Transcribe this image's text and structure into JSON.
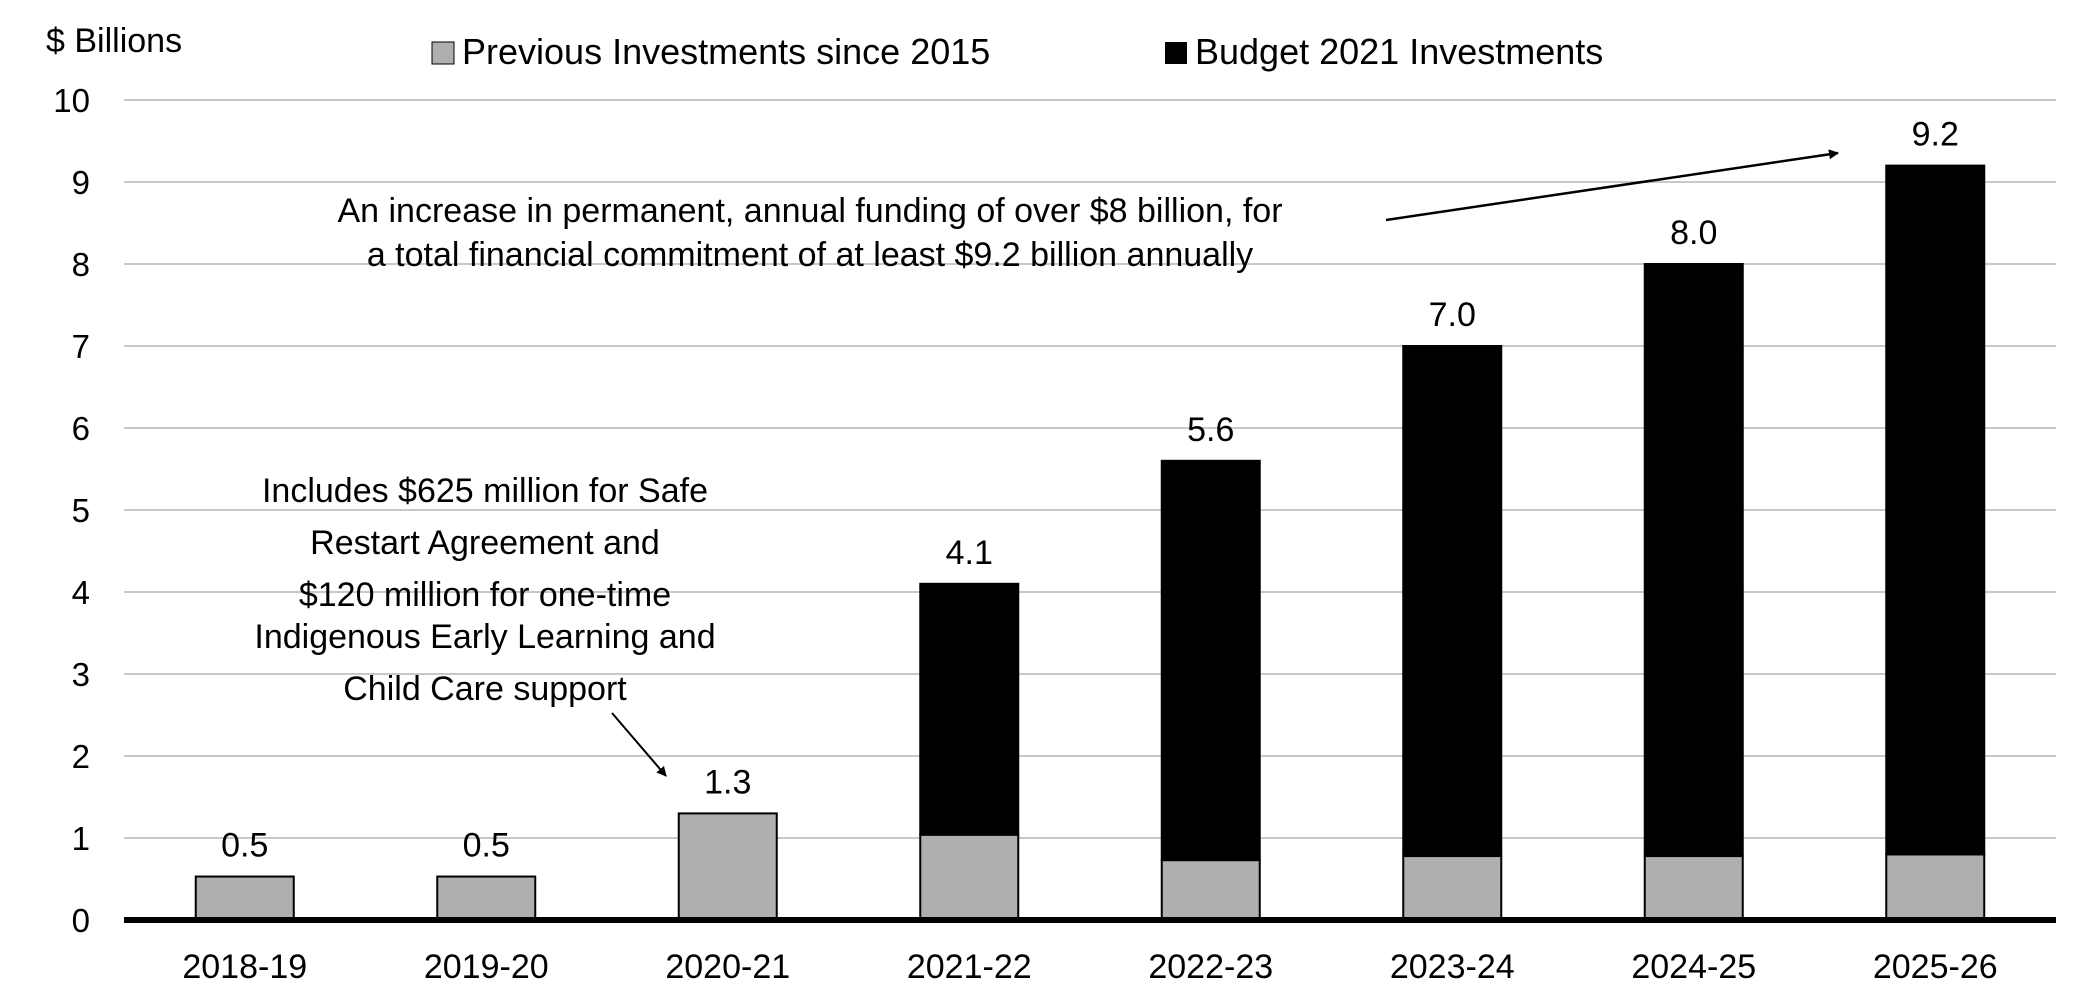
{
  "chart_data": {
    "type": "bar",
    "stacked": true,
    "ylabel": "$ Billions",
    "ylim": [
      0,
      10
    ],
    "yticks": [
      0,
      1,
      2,
      3,
      4,
      5,
      6,
      7,
      8,
      9,
      10
    ],
    "grid": true,
    "legend_position": "top",
    "categories": [
      "2018-19",
      "2019-20",
      "2020-21",
      "2021-22",
      "2022-23",
      "2023-24",
      "2024-25",
      "2025-26"
    ],
    "series": [
      {
        "name": "Previous Investments since 2015",
        "color": "#b0aeae",
        "values": [
          0.53,
          0.53,
          1.3,
          1.04,
          0.73,
          0.78,
          0.78,
          0.8
        ]
      },
      {
        "name": "Budget 2021 Investments",
        "color": "#000000",
        "values": [
          0,
          0,
          0,
          3.06,
          4.87,
          6.22,
          7.22,
          8.4
        ]
      }
    ],
    "totals_labels": [
      "0.5",
      "0.5",
      "1.3",
      "4.1",
      "5.6",
      "7.0",
      "8.0",
      "9.2"
    ],
    "annotations": [
      {
        "text": [
          "Includes $625 million for Safe",
          "Restart Agreement and",
          "$120 million for one-time",
          "Indigenous Early Learning and",
          "Child Care support"
        ],
        "points_to": "2020-21"
      },
      {
        "text": [
          "An increase in permanent, annual funding of over $8 billion, for",
          "a total financial  commitment of at least $9.2 billion annually"
        ],
        "points_to": "2025-26"
      }
    ]
  }
}
